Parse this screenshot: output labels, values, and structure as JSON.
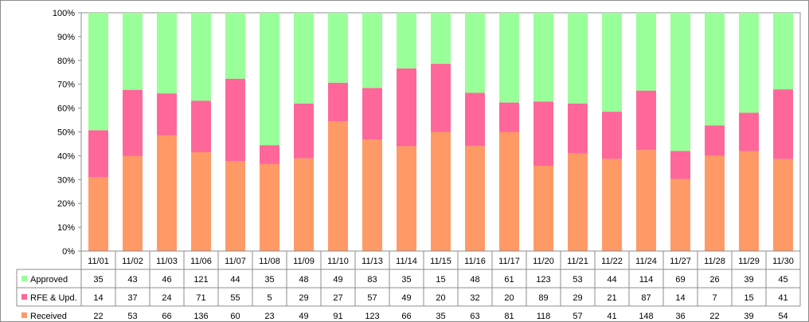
{
  "chart_data": {
    "type": "bar",
    "stacked": "percent",
    "categories": [
      "11/01",
      "11/02",
      "11/03",
      "11/06",
      "11/07",
      "11/08",
      "11/09",
      "11/10",
      "11/13",
      "11/14",
      "11/15",
      "11/16",
      "11/17",
      "11/20",
      "11/21",
      "11/22",
      "11/24",
      "11/27",
      "11/28",
      "11/29",
      "11/30"
    ],
    "series": [
      {
        "name": "Approved",
        "color": "#99ff99",
        "values": [
          35,
          43,
          46,
          121,
          44,
          35,
          48,
          49,
          83,
          35,
          15,
          48,
          61,
          123,
          53,
          44,
          114,
          69,
          26,
          39,
          45
        ]
      },
      {
        "name": "RFE & Upd.",
        "color": "#ff6699",
        "values": [
          14,
          37,
          24,
          71,
          55,
          5,
          29,
          27,
          57,
          49,
          20,
          32,
          20,
          89,
          29,
          21,
          87,
          14,
          7,
          15,
          41
        ]
      },
      {
        "name": "Received",
        "color": "#ff9966",
        "values": [
          22,
          53,
          66,
          136,
          60,
          23,
          49,
          91,
          123,
          66,
          35,
          63,
          81,
          118,
          57,
          41,
          148,
          36,
          22,
          39,
          54
        ]
      }
    ],
    "y_ticks": [
      "0%",
      "10%",
      "20%",
      "30%",
      "40%",
      "50%",
      "60%",
      "70%",
      "80%",
      "90%",
      "100%"
    ],
    "ylim": [
      0,
      100
    ],
    "grid": false,
    "legend": "data-table-left"
  }
}
